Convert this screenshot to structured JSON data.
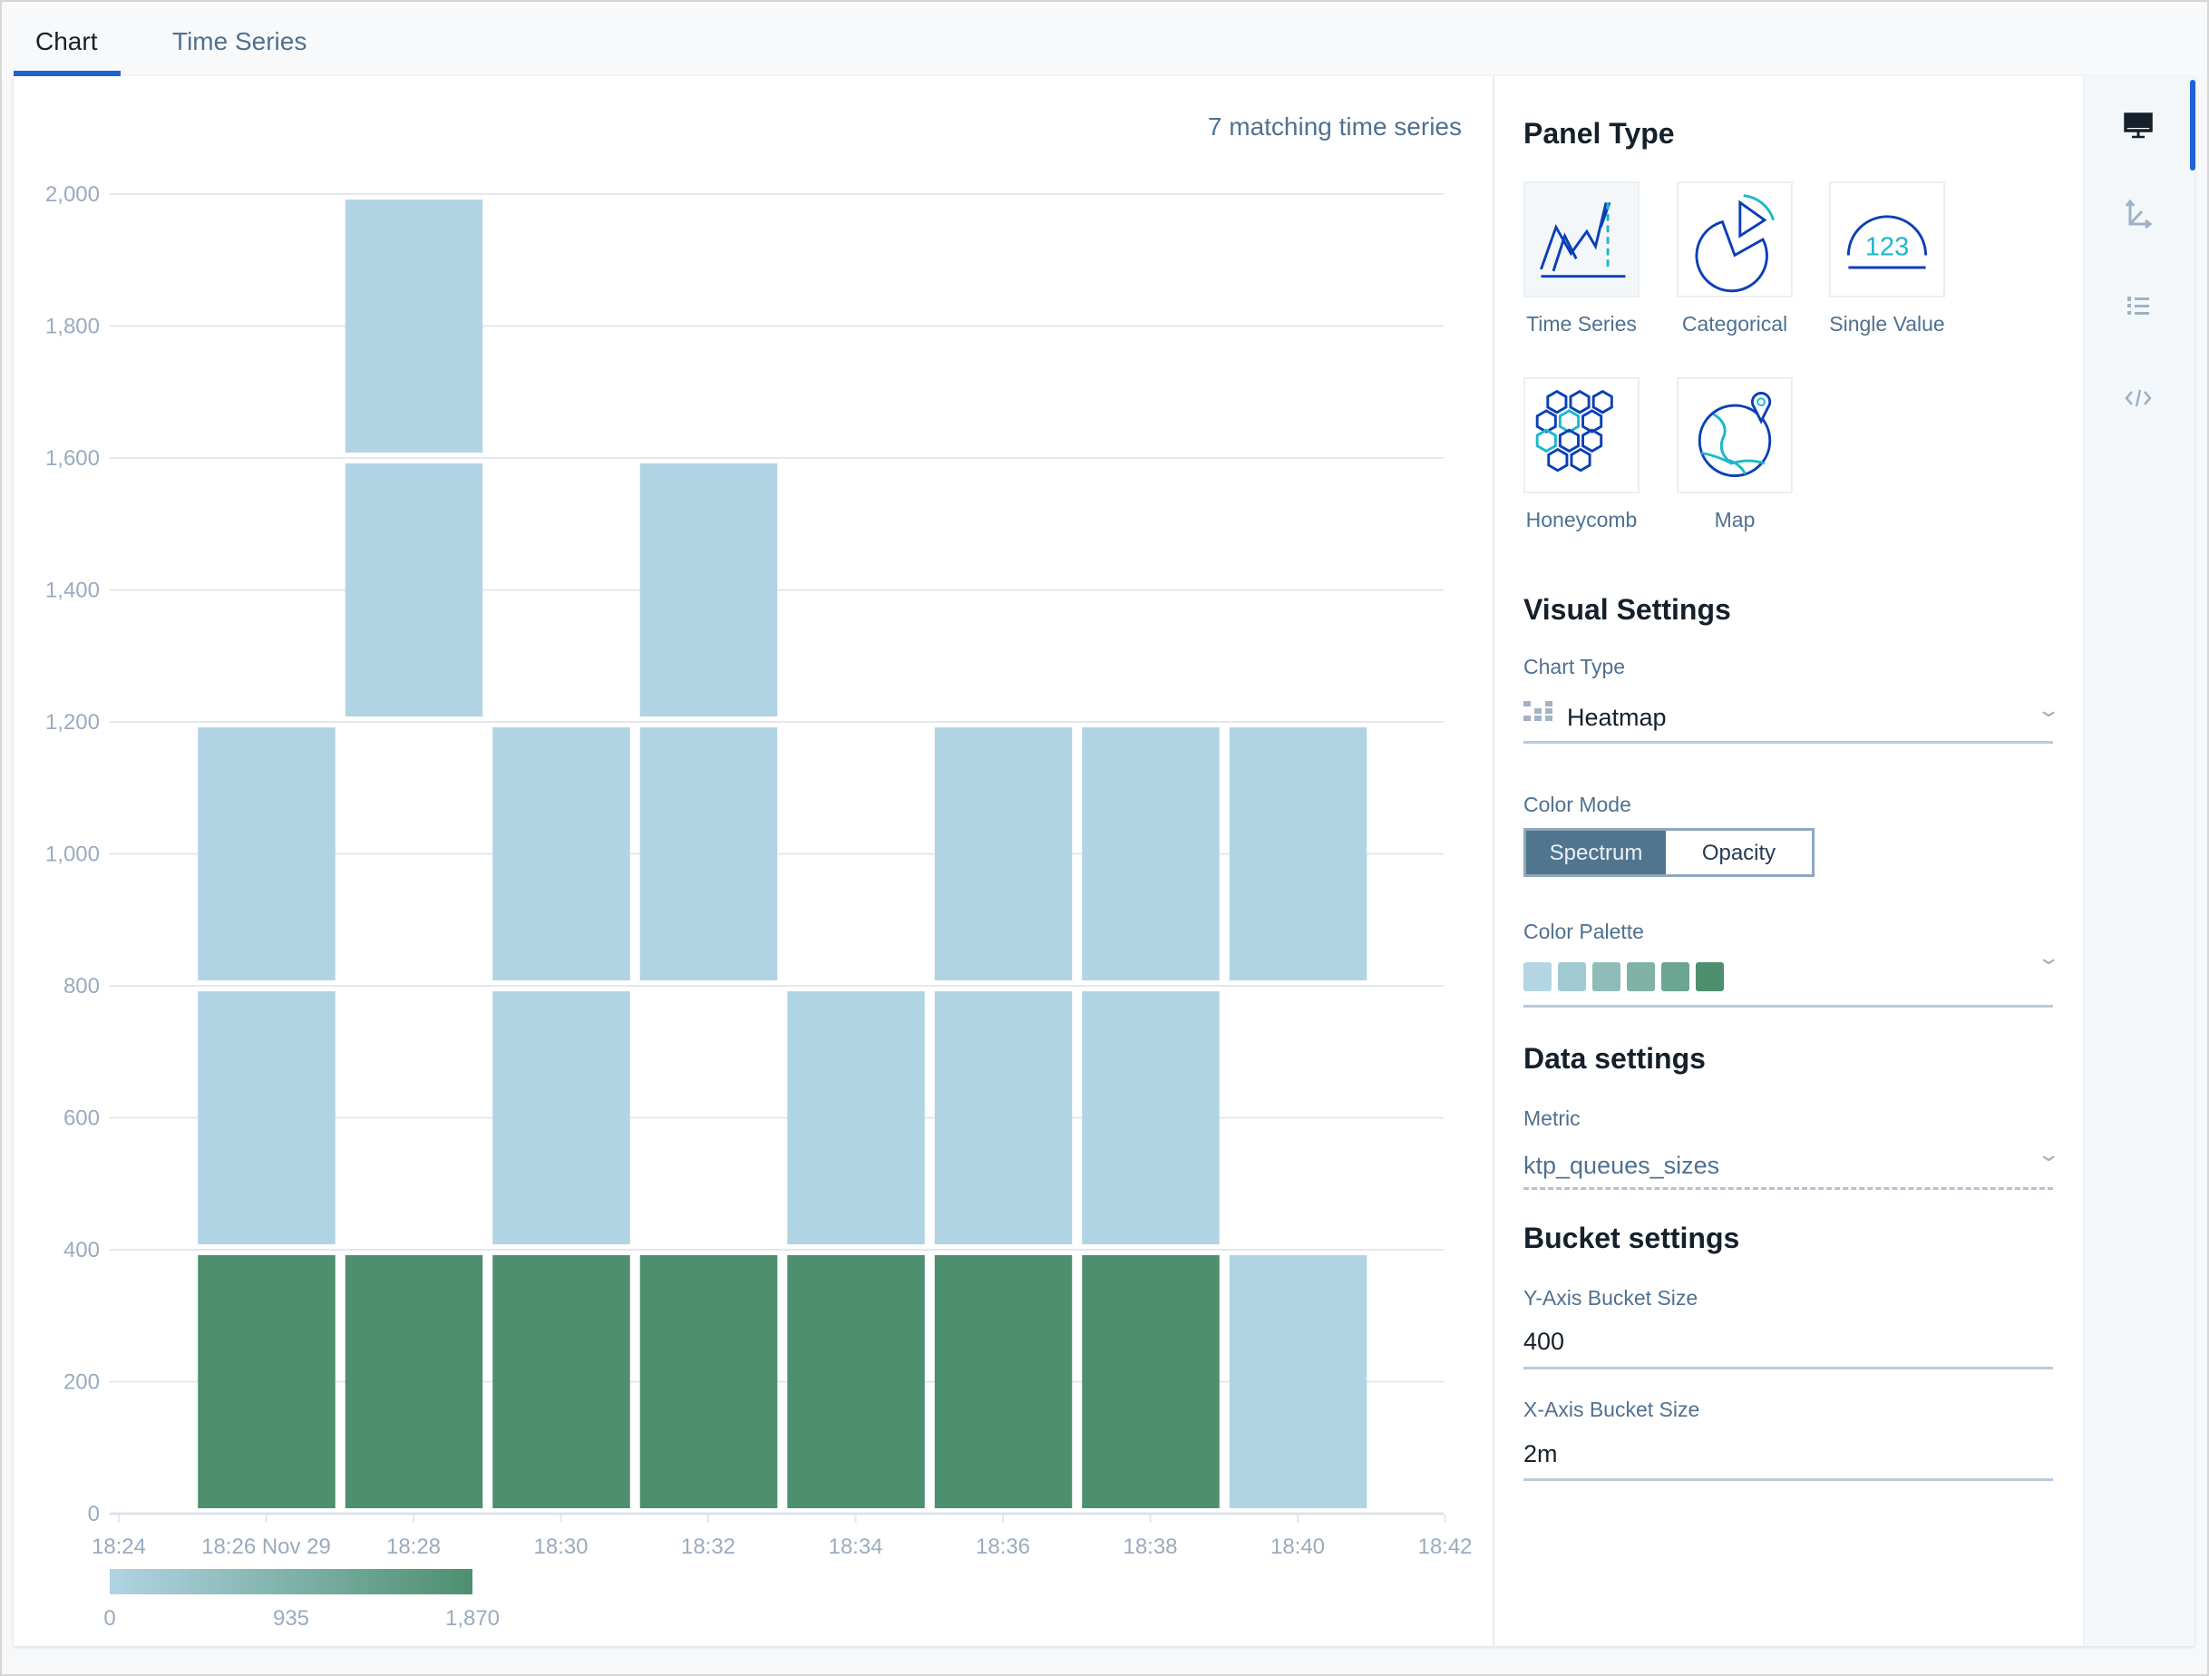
{
  "tabs": [
    {
      "label": "Chart",
      "active": true
    },
    {
      "label": "Time Series",
      "active": false
    }
  ],
  "chart_header": {
    "matching": "7 matching time series"
  },
  "chart_data": {
    "type": "heatmap",
    "x_ticks": [
      "18:24",
      "18:26 Nov 29",
      "18:28",
      "18:30",
      "18:32",
      "18:34",
      "18:36",
      "18:38",
      "18:40",
      "18:42"
    ],
    "x_range": [
      "18:24",
      "18:42"
    ],
    "x_bucket_minutes": 2,
    "y_ticks": [
      "0",
      "200",
      "400",
      "600",
      "800",
      "1,000",
      "1,200",
      "1,400",
      "1,600",
      "1,800",
      "2,000"
    ],
    "ylim": [
      0,
      2000
    ],
    "y_bucket_size": 400,
    "grid": true,
    "color_scale": {
      "min": 0,
      "max": 1870,
      "labels": [
        "0",
        "935",
        "1,870"
      ],
      "colors": [
        "#b1d4e4",
        "#4d8f6f"
      ],
      "placement": "bottom-left"
    },
    "cells": [
      {
        "x": "18:25",
        "y": [
          0,
          400
        ],
        "value": 1870
      },
      {
        "x": "18:25",
        "y": [
          400,
          800
        ],
        "value": 0
      },
      {
        "x": "18:25",
        "y": [
          800,
          1200
        ],
        "value": 0
      },
      {
        "x": "18:27",
        "y": [
          0,
          400
        ],
        "value": 1870
      },
      {
        "x": "18:27",
        "y": [
          1200,
          1600
        ],
        "value": 0
      },
      {
        "x": "18:27",
        "y": [
          1600,
          2000
        ],
        "value": 0
      },
      {
        "x": "18:29",
        "y": [
          0,
          400
        ],
        "value": 1870
      },
      {
        "x": "18:29",
        "y": [
          400,
          800
        ],
        "value": 0
      },
      {
        "x": "18:29",
        "y": [
          800,
          1200
        ],
        "value": 0
      },
      {
        "x": "18:31",
        "y": [
          0,
          400
        ],
        "value": 1870
      },
      {
        "x": "18:31",
        "y": [
          800,
          1200
        ],
        "value": 0
      },
      {
        "x": "18:31",
        "y": [
          1200,
          1600
        ],
        "value": 0
      },
      {
        "x": "18:33",
        "y": [
          0,
          400
        ],
        "value": 1870
      },
      {
        "x": "18:33",
        "y": [
          400,
          800
        ],
        "value": 0
      },
      {
        "x": "18:35",
        "y": [
          0,
          400
        ],
        "value": 1870
      },
      {
        "x": "18:35",
        "y": [
          400,
          800
        ],
        "value": 0
      },
      {
        "x": "18:35",
        "y": [
          800,
          1200
        ],
        "value": 0
      },
      {
        "x": "18:37",
        "y": [
          0,
          400
        ],
        "value": 1870
      },
      {
        "x": "18:37",
        "y": [
          400,
          800
        ],
        "value": 0
      },
      {
        "x": "18:37",
        "y": [
          800,
          1200
        ],
        "value": 0
      },
      {
        "x": "18:39",
        "y": [
          0,
          400
        ],
        "value": 0
      },
      {
        "x": "18:39",
        "y": [
          800,
          1200
        ],
        "value": 0
      }
    ]
  },
  "settings": {
    "panel_type": {
      "title": "Panel Type",
      "options": [
        {
          "label": "Time Series",
          "selected": true
        },
        {
          "label": "Categorical"
        },
        {
          "label": "Single Value"
        },
        {
          "label": "Honeycomb"
        },
        {
          "label": "Map"
        }
      ]
    },
    "visual": {
      "title": "Visual Settings",
      "chart_type_label": "Chart Type",
      "chart_type_value": "Heatmap",
      "color_mode_label": "Color Mode",
      "color_modes": [
        "Spectrum",
        "Opacity"
      ],
      "color_mode_selected": "Spectrum",
      "palette_label": "Color Palette",
      "palette": [
        "#b3d5e4",
        "#a2cad3",
        "#8fbcb9",
        "#80b2a5",
        "#6ca592",
        "#4d8f6f"
      ]
    },
    "data": {
      "title": "Data settings",
      "metric_label": "Metric",
      "metric_value": "ktp_queues_sizes"
    },
    "bucket": {
      "title": "Bucket settings",
      "y_label": "Y-Axis Bucket Size",
      "y_value": "400",
      "x_label": "X-Axis Bucket Size",
      "x_value": "2m"
    }
  },
  "sidebar_icons": [
    "monitor-icon",
    "axes-icon",
    "list-icon",
    "code-icon"
  ],
  "colors": {
    "accent": "#1f62d6",
    "toggle_active": "#52758f"
  }
}
